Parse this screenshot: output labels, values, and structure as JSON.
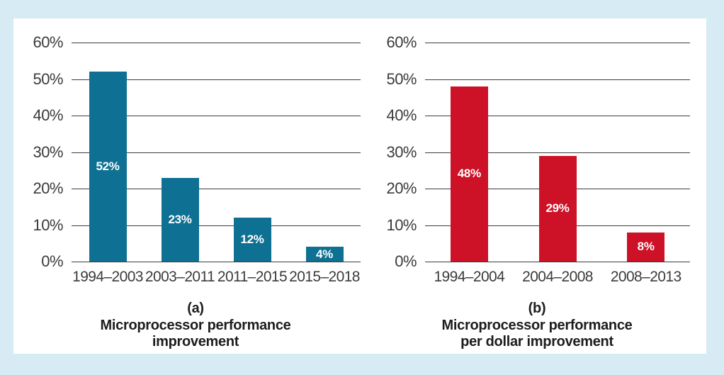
{
  "figure": {
    "background_color": "#d7ebf4",
    "panel_color": "#ffffff",
    "gridline_color": "#3d3d3d",
    "axis_text_color": "#3b3b3b",
    "caption_text_color": "#1d1d1d",
    "bar_label_color": "#ffffff"
  },
  "chart_data": [
    {
      "type": "bar",
      "panel_label": "(a)",
      "title": "Microprocessor performance improvement",
      "categories": [
        "1994–2003",
        "2003–2011",
        "2011–2015",
        "2015–2018"
      ],
      "values": [
        52,
        23,
        12,
        4
      ],
      "bar_labels": [
        "52%",
        "23%",
        "12%",
        "4%"
      ],
      "bar_color": "#0e7193",
      "ylim": [
        0,
        60
      ],
      "ytick_step": 10,
      "ytick_labels": [
        "60%",
        "50%",
        "40%",
        "30%",
        "20%",
        "10%",
        "0%"
      ],
      "grid": true,
      "legend": "none"
    },
    {
      "type": "bar",
      "panel_label": "(b)",
      "title": "Microprocessor performance per dollar improvement",
      "categories": [
        "1994–2004",
        "2004–2008",
        "2008–2013"
      ],
      "values": [
        48,
        29,
        8
      ],
      "bar_labels": [
        "48%",
        "29%",
        "8%"
      ],
      "bar_color": "#cd1126",
      "ylim": [
        0,
        60
      ],
      "ytick_step": 10,
      "ytick_labels": [
        "60%",
        "50%",
        "40%",
        "30%",
        "20%",
        "10%",
        "0%"
      ],
      "grid": true,
      "legend": "none"
    }
  ]
}
